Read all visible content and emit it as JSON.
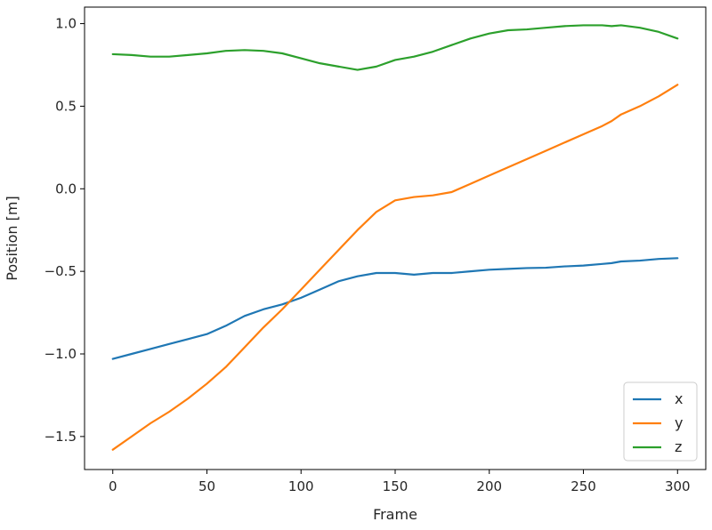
{
  "chart_data": {
    "type": "line",
    "title": "",
    "xlabel": "Frame",
    "ylabel": "Position [m]",
    "xlim": [
      -15,
      315
    ],
    "ylim": [
      -1.7,
      1.1
    ],
    "xticks": [
      0,
      50,
      100,
      150,
      200,
      250,
      300
    ],
    "yticks": [
      -1.5,
      -1.0,
      -0.5,
      0.0,
      0.5,
      1.0
    ],
    "xtick_labels": [
      "0",
      "50",
      "100",
      "150",
      "200",
      "250",
      "300"
    ],
    "ytick_labels": [
      "−1.5",
      "−1.0",
      "−0.5",
      "0.0",
      "0.5",
      "1.0"
    ],
    "grid": false,
    "legend_position": "lower-right",
    "x": [
      0,
      10,
      20,
      30,
      40,
      50,
      60,
      70,
      80,
      90,
      100,
      110,
      120,
      130,
      140,
      150,
      160,
      170,
      180,
      190,
      200,
      210,
      220,
      230,
      240,
      250,
      260,
      265,
      270,
      280,
      290,
      300
    ],
    "series": [
      {
        "name": "x",
        "color": "#1f77b4",
        "values": [
          -1.03,
          -1.0,
          -0.97,
          -0.94,
          -0.91,
          -0.88,
          -0.83,
          -0.77,
          -0.73,
          -0.7,
          -0.66,
          -0.61,
          -0.56,
          -0.53,
          -0.51,
          -0.51,
          -0.52,
          -0.51,
          -0.51,
          -0.5,
          -0.49,
          -0.485,
          -0.48,
          -0.478,
          -0.47,
          -0.465,
          -0.455,
          -0.45,
          -0.44,
          -0.435,
          -0.425,
          -0.42
        ]
      },
      {
        "name": "y",
        "color": "#ff7f0e",
        "values": [
          -1.58,
          -1.5,
          -1.42,
          -1.35,
          -1.27,
          -1.18,
          -1.08,
          -0.96,
          -0.84,
          -0.73,
          -0.61,
          -0.49,
          -0.37,
          -0.25,
          -0.14,
          -0.07,
          -0.05,
          -0.04,
          -0.02,
          0.03,
          0.08,
          0.13,
          0.18,
          0.23,
          0.28,
          0.33,
          0.38,
          0.41,
          0.45,
          0.5,
          0.56,
          0.63
        ]
      },
      {
        "name": "z",
        "color": "#2ca02c",
        "values": [
          0.815,
          0.81,
          0.8,
          0.8,
          0.81,
          0.82,
          0.835,
          0.84,
          0.835,
          0.82,
          0.79,
          0.76,
          0.74,
          0.72,
          0.74,
          0.78,
          0.8,
          0.83,
          0.87,
          0.91,
          0.94,
          0.96,
          0.965,
          0.975,
          0.985,
          0.99,
          0.99,
          0.985,
          0.99,
          0.975,
          0.95,
          0.91
        ]
      }
    ]
  }
}
